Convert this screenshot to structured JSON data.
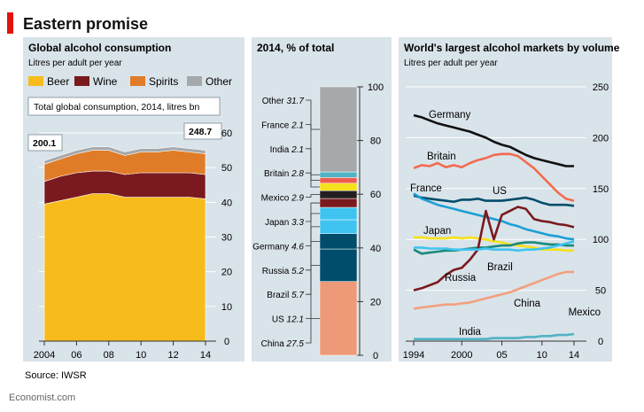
{
  "header": {
    "title": "Eastern promise",
    "source": "Source: IWSR",
    "credit": "Economist.com"
  },
  "colors": {
    "panel_bg": "#d9e3ea",
    "accent_red": "#e3120b",
    "beer": "#f7bc1c",
    "wine": "#7a1a1f",
    "spirits": "#e07c27",
    "other": "#a6a9ab",
    "grid": "#ffffff"
  },
  "chart_data": [
    {
      "type": "area",
      "title": "Global alcohol consumption",
      "subtitle": "Litres per adult per year",
      "x": [
        2004,
        2005,
        2006,
        2007,
        2008,
        2009,
        2010,
        2011,
        2012,
        2013,
        2014
      ],
      "x_tick_labels": [
        "2004",
        "06",
        "08",
        "10",
        "12",
        "14"
      ],
      "x_tick_values": [
        2004,
        2006,
        2008,
        2010,
        2012,
        2014
      ],
      "ylim": [
        0,
        60
      ],
      "y_ticks": [
        0,
        10,
        20,
        30,
        40,
        50,
        60
      ],
      "stacked": true,
      "legend_position": "top",
      "series": [
        {
          "name": "Beer",
          "color": "#f7bc1c",
          "values": [
            39.5,
            40.5,
            41.5,
            42.5,
            42.5,
            41.5,
            41.5,
            41.5,
            41.5,
            41.5,
            41
          ]
        },
        {
          "name": "Wine",
          "color": "#7a1a1f",
          "values": [
            6.5,
            7,
            7,
            6.5,
            6.5,
            6.5,
            7,
            7,
            7,
            7,
            7
          ]
        },
        {
          "name": "Spirits",
          "color": "#e07c27",
          "values": [
            5,
            5,
            5.5,
            6,
            6,
            5.5,
            6,
            6,
            6.5,
            6,
            6
          ]
        },
        {
          "name": "Other",
          "color": "#a6a9ab",
          "values": [
            1,
            1,
            1,
            1,
            1,
            1,
            1,
            1,
            1,
            1,
            1
          ]
        }
      ],
      "annotation": {
        "label": "Total global consumption, 2014, litres bn",
        "start_value": "200.1",
        "end_value": "248.7"
      }
    },
    {
      "type": "bar",
      "stacked": true,
      "title": "2014, % of total",
      "ylim": [
        0,
        100
      ],
      "y_ticks": [
        0,
        20,
        40,
        60,
        80,
        100
      ],
      "segments": [
        {
          "name": "China",
          "value": 27.5,
          "label": "27.5",
          "color": "#ee9a78"
        },
        {
          "name": "US",
          "value": 12.1,
          "label": "12.1",
          "color": "#004d6b"
        },
        {
          "name": "Brazil",
          "value": 5.7,
          "label": "5.7",
          "color": "#004d6b"
        },
        {
          "name": "Russia",
          "value": 5.2,
          "label": "5.2",
          "color": "#3fc3f0"
        },
        {
          "name": "Germany",
          "value": 4.6,
          "label": "4.6",
          "color": "#3fc3f0"
        },
        {
          "name": "Japan",
          "value": 3.3,
          "label": "3.3",
          "color": "#7a1a1f"
        },
        {
          "name": "Mexico",
          "value": 2.9,
          "label": "2.9",
          "color": "#231f20"
        },
        {
          "name": "Britain",
          "value": 2.8,
          "label": "2.8",
          "color": "#f5e01c"
        },
        {
          "name": "India",
          "value": 2.1,
          "label": "2.1",
          "color": "#ee5b4f"
        },
        {
          "name": "France",
          "value": 2.1,
          "label": "2.1",
          "color": "#4fb3c4"
        },
        {
          "name": "Other",
          "value": 31.7,
          "label": "31.7",
          "color": "#a6a9ab"
        }
      ]
    },
    {
      "type": "line",
      "title": "World's largest alcohol markets by volume",
      "subtitle": "Litres per adult per year",
      "xlim": [
        1994,
        2014
      ],
      "x_tick_labels": [
        "1994",
        "2000",
        "05",
        "10",
        "14"
      ],
      "x_tick_values": [
        1994,
        2000,
        2005,
        2010,
        2014
      ],
      "ylim": [
        0,
        250
      ],
      "y_ticks": [
        0,
        50,
        100,
        150,
        200,
        250
      ],
      "series": [
        {
          "name": "Germany",
          "color": "#111111",
          "x": [
            1994,
            1995,
            1996,
            1997,
            1998,
            1999,
            2000,
            2001,
            2002,
            2003,
            2004,
            2005,
            2006,
            2007,
            2008,
            2009,
            2010,
            2011,
            2012,
            2013,
            2014
          ],
          "y": [
            222,
            220,
            217,
            214,
            212,
            210,
            208,
            206,
            203,
            200,
            196,
            193,
            191,
            187,
            183,
            180,
            178,
            176,
            174,
            172,
            172
          ]
        },
        {
          "name": "Britain",
          "color": "#f26b4f",
          "x": [
            1994,
            1995,
            1996,
            1997,
            1998,
            1999,
            2000,
            2001,
            2002,
            2003,
            2004,
            2005,
            2006,
            2007,
            2008,
            2009,
            2010,
            2011,
            2012,
            2013,
            2014
          ],
          "y": [
            170,
            173,
            172,
            175,
            171,
            173,
            171,
            175,
            178,
            180,
            183,
            184,
            184,
            182,
            176,
            170,
            162,
            154,
            146,
            140,
            138
          ]
        },
        {
          "name": "US",
          "color": "#004d6b",
          "x": [
            1994,
            1995,
            1996,
            1997,
            1998,
            1999,
            2000,
            2001,
            2002,
            2003,
            2004,
            2005,
            2006,
            2007,
            2008,
            2009,
            2010,
            2011,
            2012,
            2013,
            2014
          ],
          "y": [
            143,
            141,
            140,
            139,
            138,
            137,
            139,
            139,
            140,
            138,
            138,
            138,
            139,
            140,
            141,
            139,
            136,
            134,
            134,
            134,
            133
          ]
        },
        {
          "name": "France",
          "color": "#1b9fd6",
          "x": [
            1994,
            1995,
            1996,
            1997,
            1998,
            1999,
            2000,
            2001,
            2002,
            2003,
            2004,
            2005,
            2006,
            2007,
            2008,
            2009,
            2010,
            2011,
            2012,
            2013,
            2014
          ],
          "y": [
            145,
            140,
            137,
            134,
            132,
            130,
            128,
            126,
            124,
            122,
            120,
            118,
            115,
            113,
            110,
            108,
            106,
            104,
            103,
            101,
            100
          ]
        },
        {
          "name": "Japan",
          "color": "#f5e01c",
          "x": [
            1994,
            1995,
            1996,
            1997,
            1998,
            1999,
            2000,
            2001,
            2002,
            2003,
            2004,
            2005,
            2006,
            2007,
            2008,
            2009,
            2010,
            2011,
            2012,
            2013,
            2014
          ],
          "y": [
            102,
            102,
            101,
            101,
            101,
            102,
            101,
            102,
            101,
            100,
            98,
            97,
            95,
            94,
            93,
            92,
            90,
            90,
            90,
            89,
            89
          ]
        },
        {
          "name": "Brazil",
          "color": "#1a8a7a",
          "x": [
            1994,
            1995,
            1996,
            1997,
            1998,
            1999,
            2000,
            2001,
            2002,
            2003,
            2004,
            2005,
            2006,
            2007,
            2008,
            2009,
            2010,
            2011,
            2012,
            2013,
            2014
          ],
          "y": [
            90,
            86,
            87,
            88,
            89,
            89,
            90,
            91,
            92,
            92,
            93,
            94,
            94,
            96,
            97,
            97,
            96,
            95,
            95,
            94,
            94
          ]
        },
        {
          "name": "Russia",
          "color": "#7a1a1f",
          "x": [
            1994,
            1995,
            1996,
            1997,
            1998,
            1999,
            2000,
            2001,
            2002,
            2003,
            2004,
            2005,
            2006,
            2007,
            2008,
            2009,
            2010,
            2011,
            2012,
            2013,
            2014
          ],
          "y": [
            50,
            52,
            55,
            58,
            65,
            70,
            72,
            80,
            90,
            128,
            100,
            124,
            128,
            132,
            130,
            120,
            118,
            117,
            115,
            114,
            112
          ]
        },
        {
          "name": "Mexico",
          "color": "#3fc3f0",
          "x": [
            1994,
            1995,
            1996,
            1997,
            1998,
            1999,
            2000,
            2001,
            2002,
            2003,
            2004,
            2005,
            2006,
            2007,
            2008,
            2009,
            2010,
            2011,
            2012,
            2013,
            2014
          ],
          "y": [
            92,
            92,
            91,
            91,
            91,
            90,
            90,
            90,
            90,
            91,
            90,
            90,
            90,
            89,
            90,
            90,
            91,
            92,
            94,
            96,
            98
          ]
        },
        {
          "name": "China",
          "color": "#f3a07e",
          "x": [
            1994,
            1995,
            1996,
            1997,
            1998,
            1999,
            2000,
            2001,
            2002,
            2003,
            2004,
            2005,
            2006,
            2007,
            2008,
            2009,
            2010,
            2011,
            2012,
            2013,
            2014
          ],
          "y": [
            32,
            33,
            34,
            35,
            36,
            36,
            37,
            38,
            40,
            42,
            44,
            46,
            48,
            51,
            54,
            57,
            60,
            63,
            66,
            68,
            68
          ]
        },
        {
          "name": "India",
          "color": "#4fb3c4",
          "x": [
            1994,
            1995,
            1996,
            1997,
            1998,
            1999,
            2000,
            2001,
            2002,
            2003,
            2004,
            2005,
            2006,
            2007,
            2008,
            2009,
            2010,
            2011,
            2012,
            2013,
            2014
          ],
          "y": [
            2,
            2,
            2,
            2,
            2,
            2,
            2,
            2,
            2,
            2,
            3,
            3,
            3,
            3,
            4,
            4,
            5,
            5,
            6,
            6,
            7
          ]
        }
      ]
    }
  ]
}
